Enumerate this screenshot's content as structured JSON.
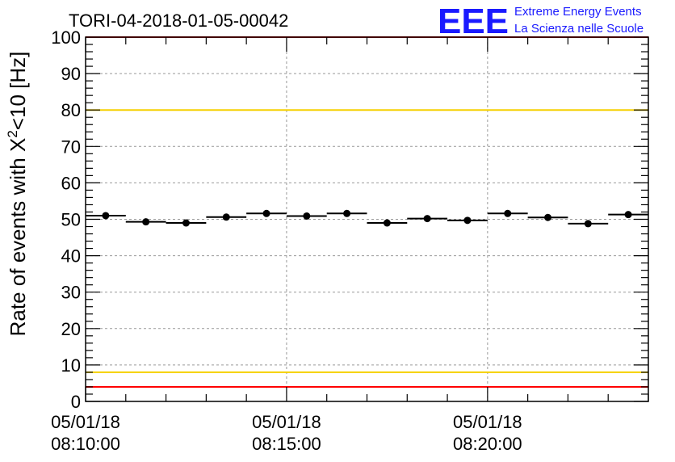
{
  "chart_data": {
    "type": "scatter",
    "title": "TORI-04-2018-01-05-00042",
    "ylabel_prefix": "Rate of events with ",
    "ylabel_chi": "X",
    "ylabel_sup": "2",
    "ylabel_suffix": "<10 [Hz]",
    "ylim": [
      0,
      100
    ],
    "yticks": [
      0,
      10,
      20,
      30,
      40,
      50,
      60,
      70,
      80,
      90,
      100
    ],
    "xlim_min": [
      0,
      14
    ],
    "xticks": [
      {
        "min": 0,
        "date": "05/01/18",
        "time": "08:10:00"
      },
      {
        "min": 5,
        "date": "05/01/18",
        "time": "08:15:00"
      },
      {
        "min": 10,
        "date": "05/01/18",
        "time": "08:20:00"
      }
    ],
    "grid": true,
    "bin_width_min": 1,
    "values": [
      51.0,
      49.3,
      49.0,
      50.6,
      51.6,
      50.9,
      51.6,
      49.0,
      50.2,
      49.7,
      51.6,
      50.5,
      48.8,
      51.3
    ],
    "reference_lines": [
      {
        "value": 80,
        "color": "#f5d000"
      },
      {
        "value": 8,
        "color": "#f5d000"
      },
      {
        "value": 100,
        "color": "#ff0000"
      },
      {
        "value": 4,
        "color": "#ff0000"
      }
    ],
    "marker_color": "#000000"
  },
  "logo": {
    "mark": "EEE",
    "line1": "Extreme Energy Events",
    "line2": "La Scienza nelle Scuole",
    "color": "#1a1aff"
  }
}
